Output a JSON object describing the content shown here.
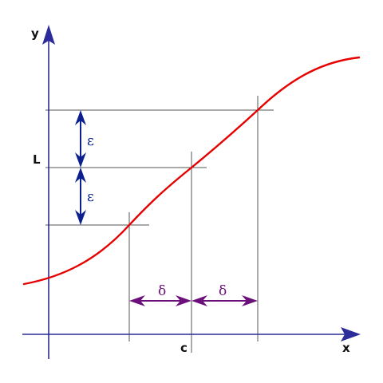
{
  "labels": {
    "y_axis": "y",
    "x_axis": "x",
    "limit": "L",
    "point": "c",
    "epsilon_upper": "ε",
    "epsilon_lower": "ε",
    "delta_left": "δ",
    "delta_right": "δ"
  },
  "colors": {
    "axis": "#2b2b9a",
    "curve": "#e60000",
    "guide_line": "#555555",
    "epsilon_arrow": "#0b1f8f",
    "delta_arrow": "#6b0f7a",
    "label_text": "#111111"
  }
}
